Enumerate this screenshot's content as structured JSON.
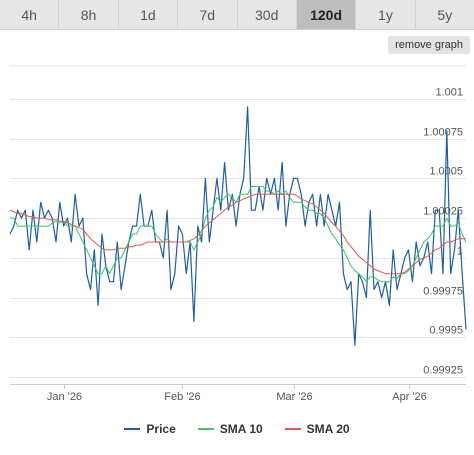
{
  "tabs": [
    {
      "label": "4h",
      "active": false
    },
    {
      "label": "8h",
      "active": false
    },
    {
      "label": "1d",
      "active": false
    },
    {
      "label": "7d",
      "active": false
    },
    {
      "label": "30d",
      "active": false
    },
    {
      "label": "120d",
      "active": true
    },
    {
      "label": "1y",
      "active": false
    },
    {
      "label": "5y",
      "active": false
    }
  ],
  "remove_graph_label": "remove graph",
  "chart_data": {
    "type": "line",
    "x_labels": [
      "Jan '26",
      "Feb '26",
      "Mar '26",
      "Apr '26"
    ],
    "x_label_positions": [
      14,
      45,
      74,
      104
    ],
    "y_ticks": [
      "1.001",
      "1.00075",
      "1.0005",
      "1.00025",
      "1",
      "0.99975",
      "0.9995",
      "0.99925"
    ],
    "y_tick_values": [
      1.001,
      1.00075,
      1.0005,
      1.00025,
      1,
      0.99975,
      0.9995,
      0.99925
    ],
    "ylim": [
      0.99925,
      1.001
    ],
    "grid": true,
    "legend_position": "bottom",
    "series": [
      {
        "name": "Price",
        "color": "#1f5f9e",
        "values": [
          1.00015,
          1.0002,
          1.0003,
          1.00025,
          1.0003,
          1.00005,
          1.0003,
          1.0001,
          1.00035,
          1.00025,
          1.0003,
          1.00025,
          1.0001,
          1.00035,
          1.0002,
          1.00025,
          1.0001,
          1.0004,
          1.0002,
          1.00025,
          0.9999,
          0.9998,
          1.00005,
          0.9997,
          1.00015,
          0.99995,
          0.99985,
          0.99985,
          1.0001,
          0.9998,
          0.99995,
          1.0001,
          1.0002,
          1.0002,
          1.0004,
          1.0002,
          1.0002,
          1.0003,
          1.0001,
          1.0001,
          1.0,
          1.0003,
          0.9998,
          0.9999,
          1.0002,
          1.00015,
          0.9999,
          1.0001,
          0.9996,
          1.0002,
          1.0001,
          1.0005,
          1.0001,
          1.0003,
          1.0005,
          1.0003,
          1.0006,
          1.0003,
          1.0004,
          1.0002,
          1.0004,
          1.0005,
          1.00095,
          1.0003,
          1.0003,
          1.00045,
          1.0003,
          1.0005,
          1.0004,
          1.0005,
          1.0003,
          1.0006,
          1.0002,
          1.0004,
          1.0005,
          1.0005,
          1.0004,
          1.0002,
          1.00035,
          1.0004,
          1.0002,
          1.0004,
          1.0002,
          1.0004,
          1.0003,
          1.0002,
          1.00035,
          0.9999,
          0.9998,
          0.99985,
          0.99945,
          0.9999,
          0.99985,
          0.99975,
          1.0003,
          0.9998,
          0.99985,
          0.99975,
          0.99985,
          0.9997,
          1.00005,
          0.9998,
          0.9999,
          1.0,
          1.00005,
          0.99985,
          1.0001,
          0.99995,
          1.0,
          1.0001,
          0.9999,
          1.0003,
          1.0003,
          0.9999,
          1.0008,
          0.9999,
          1.00005,
          1.0003,
          0.9999,
          0.99955
        ]
      },
      {
        "name": "SMA 10",
        "color": "#3cc46a",
        "values": [
          1.00025,
          1.00025,
          1.0002,
          1.0002,
          1.0002,
          1.0002,
          1.0002,
          1.0002,
          1.0002,
          1.0002,
          1.0002,
          1.00022,
          1.00023,
          1.00022,
          1.00023,
          1.0002,
          1.0002,
          1.0002,
          1.00015,
          1.0001,
          1.00005,
          1.0,
          0.99995,
          0.9999,
          0.9999,
          0.99995,
          0.9999,
          0.99995,
          1.0,
          1.0,
          1.00005,
          1.0001,
          1.00015,
          1.00015,
          1.0002,
          1.0002,
          1.0002,
          1.0002,
          1.00015,
          1.00012,
          1.0001,
          1.00012,
          1.0001,
          1.0001,
          1.0001,
          1.0001,
          1.0001,
          1.0001,
          1.00005,
          1.0001,
          1.00015,
          1.00025,
          1.0003,
          1.00032,
          1.00038,
          1.00035,
          1.00038,
          1.0004,
          1.00038,
          1.00035,
          1.0004,
          1.0004,
          1.0004,
          1.00045,
          1.00045,
          1.00045,
          1.00045,
          1.00042,
          1.00042,
          1.0004,
          1.00042,
          1.0004,
          1.00042,
          1.00038,
          1.00035,
          1.00035,
          1.00035,
          1.00032,
          1.0003,
          1.0003,
          1.00028,
          1.00028,
          1.00025,
          1.0002,
          1.00015,
          1.00012,
          1.00008,
          1.00005,
          1.0,
          0.99995,
          0.99992,
          0.9999,
          0.99988,
          0.99985,
          0.99988,
          0.99988,
          0.99986,
          0.99985,
          0.99985,
          0.99985,
          0.99988,
          0.99987,
          0.9999,
          0.9999,
          0.99992,
          0.99995,
          1.0,
          1.00005,
          1.0001,
          1.00012,
          1.00015,
          1.0002,
          1.0002,
          1.0002,
          1.00025,
          1.0002,
          1.0002,
          1.00022,
          1.00015,
          1.0001
        ]
      },
      {
        "name": "SMA 20",
        "color": "#e05b4b",
        "values": [
          1.0003,
          1.00029,
          1.00028,
          1.00028,
          1.00027,
          1.00026,
          1.00026,
          1.00025,
          1.00025,
          1.00025,
          1.00024,
          1.00024,
          1.00024,
          1.00023,
          1.00023,
          1.00022,
          1.00021,
          1.0002,
          1.00019,
          1.00018,
          1.00015,
          1.00012,
          1.0001,
          1.00008,
          1.00006,
          1.00005,
          1.00005,
          1.00005,
          1.00006,
          1.00006,
          1.00006,
          1.00007,
          1.00007,
          1.00008,
          1.00008,
          1.00009,
          1.0001,
          1.0001,
          1.0001,
          1.0001,
          1.0001,
          1.0001,
          1.0001,
          1.0001,
          1.0001,
          1.0001,
          1.0001,
          1.00011,
          1.00012,
          1.00014,
          1.00017,
          1.0002,
          1.00022,
          1.00024,
          1.00026,
          1.00028,
          1.0003,
          1.00032,
          1.00033,
          1.00035,
          1.00036,
          1.00037,
          1.00038,
          1.00039,
          1.0004,
          1.0004,
          1.0004,
          1.0004,
          1.0004,
          1.0004,
          1.0004,
          1.0004,
          1.0004,
          1.0004,
          1.0004,
          1.00039,
          1.00037,
          1.00036,
          1.00035,
          1.00034,
          1.00032,
          1.0003,
          1.00028,
          1.00025,
          1.00022,
          1.0002,
          1.00017,
          1.00014,
          1.0001,
          1.00007,
          1.00004,
          1.00001,
          0.99999,
          0.99997,
          0.99995,
          0.99993,
          0.99992,
          0.99991,
          0.9999,
          0.9999,
          0.9999,
          0.9999,
          0.9999,
          0.99991,
          0.99993,
          0.99995,
          0.99997,
          0.99999,
          1.0,
          1.00001,
          1.00003,
          1.00005,
          1.00006,
          1.00008,
          1.0001,
          1.0001,
          1.00011,
          1.00012,
          1.00012,
          1.00012
        ]
      }
    ]
  }
}
